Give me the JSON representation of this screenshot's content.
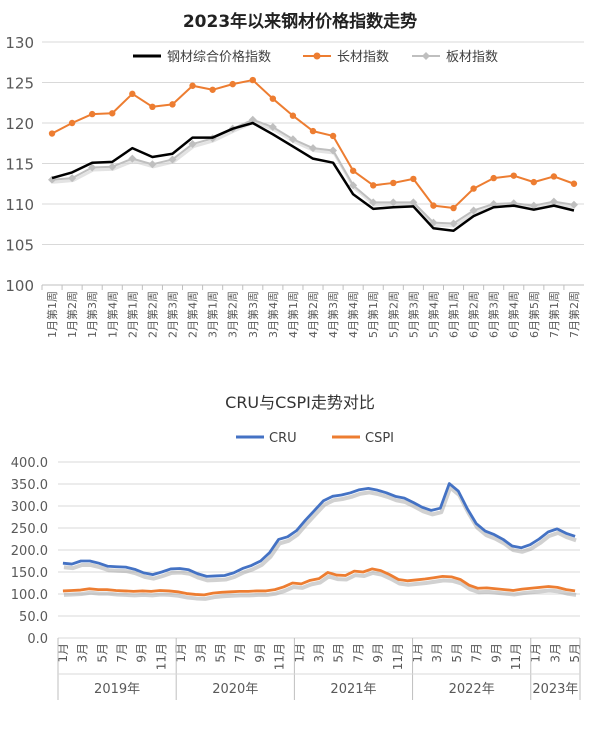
{
  "chart_data": [
    {
      "type": "line",
      "title": "2023年以来钢材价格指数走势",
      "categories": [
        "1月第1周",
        "1月第2周",
        "1月第3周",
        "1月第4周",
        "2月第1周",
        "2月第2周",
        "2月第3周",
        "2月第4周",
        "3月第1周",
        "3月第2周",
        "3月第3周",
        "3月第4周",
        "4月第1周",
        "4月第2周",
        "4月第3周",
        "4月第4周",
        "5月第1周",
        "5月第2周",
        "5月第3周",
        "5月第4周",
        "6月第1周",
        "6月第2周",
        "6月第3周",
        "6月第4周",
        "6月第5周",
        "7月第1周",
        "7月第2周"
      ],
      "ylim": [
        100,
        130
      ],
      "yticks": [
        "100",
        "105",
        "110",
        "115",
        "120",
        "125",
        "130"
      ],
      "series": [
        {
          "name": "钢材综合价格指数",
          "color": "#000000",
          "marker": "none",
          "values": [
            113.2,
            113.9,
            115.1,
            115.2,
            116.9,
            115.8,
            116.2,
            118.2,
            118.2,
            119.3,
            120.0,
            118.6,
            117.1,
            115.6,
            115.1,
            111.2,
            109.4,
            109.6,
            109.7,
            107.0,
            106.7,
            108.5,
            109.6,
            109.8,
            109.3,
            109.8,
            109.2
          ]
        },
        {
          "name": "长材指数",
          "color": "#ED7D31",
          "marker": "circle",
          "values": [
            118.7,
            120.0,
            121.1,
            121.2,
            123.6,
            122.0,
            122.3,
            124.6,
            124.1,
            124.8,
            125.3,
            123.0,
            120.9,
            119.0,
            118.4,
            114.1,
            112.3,
            112.6,
            113.1,
            109.8,
            109.5,
            111.9,
            113.2,
            113.5,
            112.7,
            113.4,
            112.5
          ]
        },
        {
          "name": "板材指数",
          "color": "#BFBFBF",
          "marker": "diamond",
          "values": [
            113.0,
            113.2,
            114.5,
            114.6,
            115.6,
            114.9,
            115.5,
            117.4,
            118.1,
            119.3,
            120.4,
            119.5,
            118.0,
            116.9,
            116.6,
            112.3,
            110.2,
            110.2,
            110.2,
            107.7,
            107.6,
            109.2,
            110.0,
            110.1,
            109.8,
            110.3,
            109.9
          ]
        }
      ]
    },
    {
      "type": "line",
      "title": "CRU与CSPI走势对比",
      "x_tick_labels": [
        "1月",
        "3月",
        "5月",
        "7月",
        "9月",
        "11月",
        "1月",
        "3月",
        "5月",
        "7月",
        "9月",
        "11月",
        "1月",
        "3月",
        "5月",
        "7月",
        "9月",
        "11月",
        "1月",
        "3月",
        "5月",
        "7月",
        "9月",
        "11月",
        "1月",
        "3月",
        "5月"
      ],
      "year_labels": [
        "2019年",
        "2020年",
        "2021年",
        "2022年",
        "2023年"
      ],
      "ylim": [
        0,
        400
      ],
      "yticks": [
        "0.0",
        "50.0",
        "100.0",
        "150.0",
        "200.0",
        "250.0",
        "300.0",
        "350.0",
        "400.0"
      ],
      "series": [
        {
          "name": "CRU",
          "color": "#4472C4",
          "values": [
            170,
            168,
            175,
            175,
            170,
            163,
            162,
            161,
            156,
            148,
            144,
            150,
            157,
            158,
            155,
            146,
            140,
            141,
            142,
            148,
            158,
            165,
            175,
            194,
            224,
            230,
            244,
            268,
            290,
            312,
            322,
            325,
            330,
            337,
            340,
            336,
            330,
            322,
            318,
            308,
            297,
            290,
            295,
            351,
            334,
            294,
            260,
            243,
            235,
            224,
            209,
            205,
            212,
            225,
            241,
            248,
            238,
            231
          ]
        },
        {
          "name": "CSPI",
          "color": "#ED7D31",
          "values": [
            107,
            108,
            109,
            112,
            110,
            110,
            108,
            107,
            106,
            107,
            106,
            108,
            107,
            105,
            101,
            99,
            98,
            102,
            104,
            105,
            106,
            106,
            107,
            107,
            110,
            116,
            125,
            123,
            131,
            135,
            149,
            143,
            142,
            152,
            150,
            157,
            153,
            144,
            133,
            130,
            132,
            134,
            137,
            140,
            139,
            133,
            120,
            113,
            114,
            112,
            110,
            108,
            111,
            113,
            115,
            117,
            115,
            110,
            107
          ]
        }
      ]
    }
  ]
}
